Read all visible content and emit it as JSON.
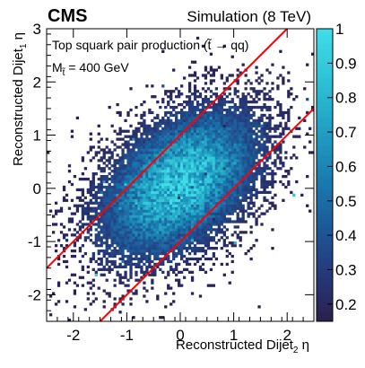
{
  "chart_data": {
    "type": "heatmap",
    "experiment": "CMS",
    "condition": "Simulation (8 TeV)",
    "annotation_line1": "Top squark pair production (t̃ → qq)",
    "annotation_line2": "M",
    "annotation_line2_sub": "t̃",
    "annotation_line2_rest": " = 400 GeV",
    "xlabel": "Reconstructed Dijet",
    "xlabel_sub": "2",
    "xlabel_suffix": " η",
    "ylabel": "Reconstructed Dijet",
    "ylabel_sub": "1",
    "ylabel_suffix": " η",
    "xlim": [
      -2.5,
      2.5
    ],
    "ylim": [
      -2.5,
      3.0
    ],
    "x_ticks": [
      -2,
      -1,
      0,
      1,
      2
    ],
    "y_ticks": [
      -2,
      -1,
      0,
      1,
      2,
      3
    ],
    "z_min": 0.15,
    "z_max": 1.0,
    "z_ticks": [
      0.2,
      0.3,
      0.4,
      0.5,
      0.6,
      0.7,
      0.8,
      0.9,
      1
    ],
    "colormap": [
      "#2a1f4f",
      "#253a7a",
      "#1c5b9a",
      "#1a7fb0",
      "#22a2c4",
      "#2fc3d6",
      "#3fdde8"
    ],
    "distribution": {
      "center": [
        0.0,
        0.1
      ],
      "sigma_x": 0.9,
      "sigma_y": 0.85,
      "correlation": 0.45,
      "bins_x": 100,
      "bins_y": 110
    },
    "cut_lines": [
      {
        "name": "upper",
        "slope": 1.0,
        "intercept": 1.0,
        "color": "#ff0000"
      },
      {
        "name": "lower",
        "slope": 1.0,
        "intercept": -1.0,
        "color": "#ff0000"
      }
    ]
  }
}
